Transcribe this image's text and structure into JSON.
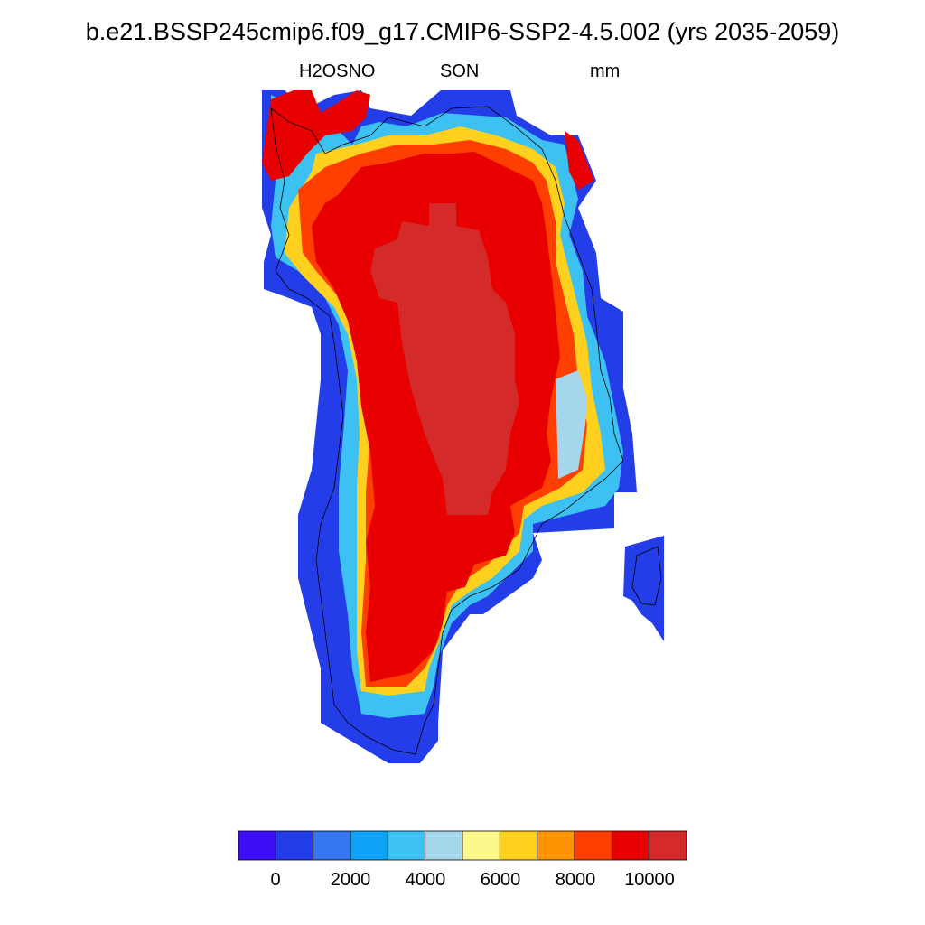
{
  "title": "b.e21.BSSP245cmip6.f09_g17.CMIP6-SSP2-4.5.002 (yrs 2035-2059)",
  "subtitle": {
    "variable": "H2OSNO",
    "season": "SON",
    "units": "mm"
  },
  "colorbar": {
    "colors": [
      "#3d0ef5",
      "#233ee8",
      "#3577ef",
      "#0fa1f5",
      "#3cc1f2",
      "#a6d6ec",
      "#fef88c",
      "#ffd11e",
      "#ff9400",
      "#ff3f00",
      "#e80000",
      "#d42a2a"
    ],
    "tick_labels": [
      {
        "text": "0",
        "value": 0
      },
      {
        "text": "2000",
        "value": 2000
      },
      {
        "text": "4000",
        "value": 4000
      },
      {
        "text": "6000",
        "value": 6000
      },
      {
        "text": "8000",
        "value": 8000
      },
      {
        "text": "10000",
        "value": 10000
      }
    ]
  }
}
